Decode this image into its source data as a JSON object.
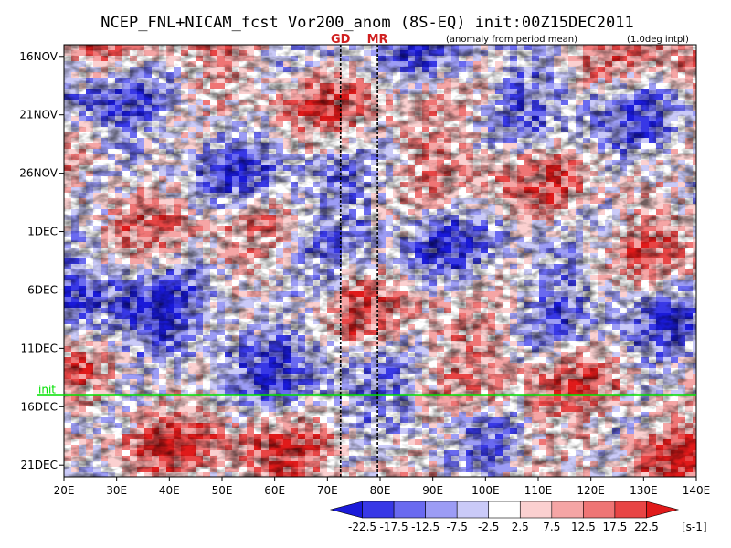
{
  "chart_data": {
    "type": "heatmap",
    "title": "NCEP_FNL+NICAM_fcst Vor200_anom (8S-EQ) init:00Z15DEC2011",
    "subtitle_left": "(anomaly from period mean)",
    "subtitle_right": "(1.0deg intpl)",
    "x_ticks": [
      "20E",
      "30E",
      "40E",
      "50E",
      "60E",
      "70E",
      "80E",
      "90E",
      "100E",
      "110E",
      "120E",
      "130E",
      "140E"
    ],
    "x_range": [
      20,
      140
    ],
    "y_ticks": [
      "16NOV",
      "21NOV",
      "26NOV",
      "1DEC",
      "6DEC",
      "11DEC",
      "16DEC",
      "21DEC"
    ],
    "y_range_days": [
      "15NOV2011",
      "22DEC2011"
    ],
    "marker_lines": [
      {
        "label": "GD",
        "lon": 72.5
      },
      {
        "label": "MR",
        "lon": 79.5
      }
    ],
    "init_line": {
      "label": "init",
      "date": "15DEC2011"
    },
    "colorbar": {
      "levels": [
        "-22.5",
        "-17.5",
        "-12.5",
        "-7.5",
        "-2.5",
        "2.5",
        "7.5",
        "12.5",
        "17.5",
        "22.5"
      ],
      "unit": "[s-1]",
      "colors": [
        "#1a1ad9",
        "#3838e6",
        "#6a6af0",
        "#9c9cf5",
        "#cacaf8",
        "#ffffff",
        "#fbd0d0",
        "#f5a5a5",
        "#ef7575",
        "#e84545",
        "#e01a1a"
      ]
    },
    "colors": {
      "init_line": "#00e000",
      "marker_text": "#d02020"
    }
  }
}
